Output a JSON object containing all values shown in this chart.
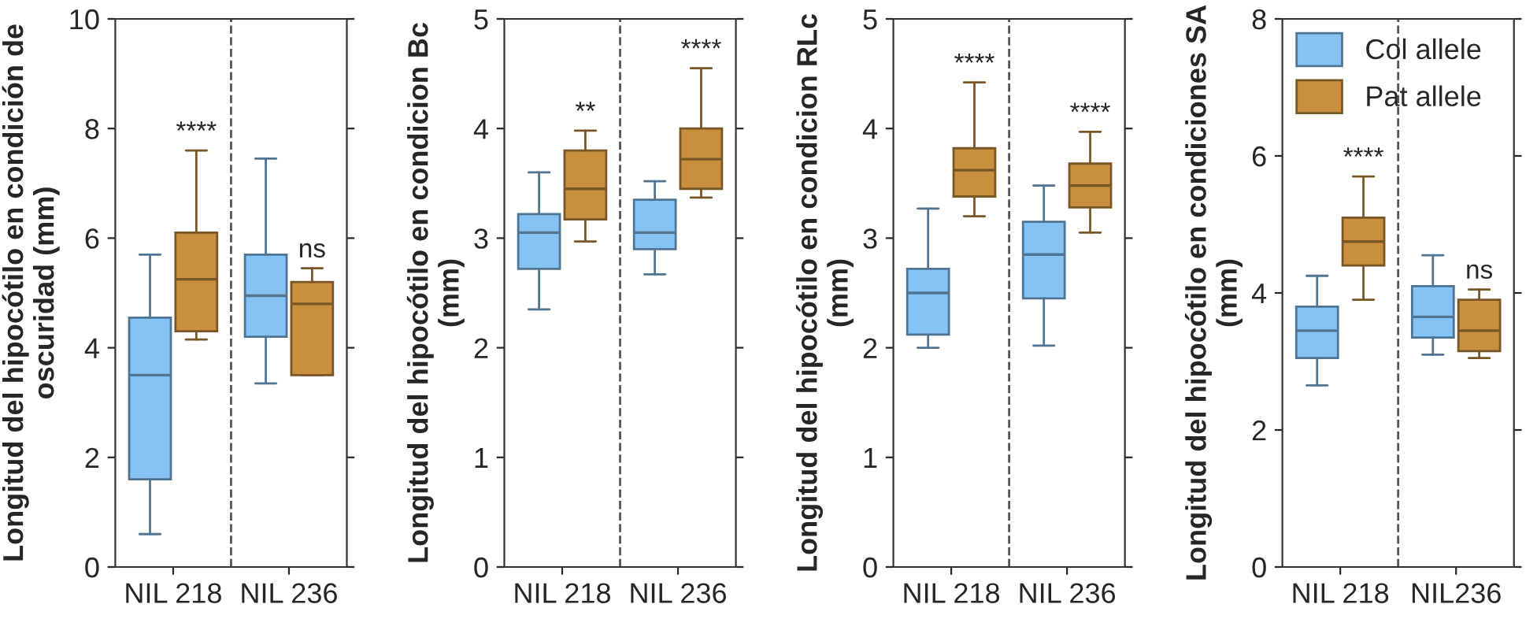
{
  "chart_data": [
    {
      "type": "box",
      "ylabel": "Longitud del hipocótilo en condición de oscuridad (mm)",
      "categories": [
        "NIL 218",
        "NIL 236"
      ],
      "ylim": [
        0,
        10
      ],
      "yticks": [
        0,
        2,
        4,
        6,
        8,
        10
      ],
      "grid": false,
      "series": [
        {
          "color": "#86c3f5",
          "boxes": [
            {
              "low": 0.6,
              "q1": 1.6,
              "median": 3.5,
              "q3": 4.55,
              "high": 5.7
            },
            {
              "low": 3.35,
              "q1": 4.2,
              "median": 4.95,
              "q3": 5.7,
              "high": 7.45
            }
          ]
        },
        {
          "color": "#c98f3e",
          "boxes": [
            {
              "low": 4.15,
              "q1": 4.3,
              "median": 5.25,
              "q3": 6.1,
              "high": 7.6
            },
            {
              "low": 3.5,
              "q1": 3.5,
              "median": 4.8,
              "q3": 5.2,
              "high": 5.45
            }
          ]
        }
      ],
      "annotations": [
        "****",
        "ns"
      ]
    },
    {
      "type": "box",
      "ylabel": "Longitud del hipocótilo en condicion Bc (mm)",
      "categories": [
        "NIL 218",
        "NIL 236"
      ],
      "ylim": [
        0,
        5
      ],
      "yticks": [
        0,
        1,
        2,
        3,
        4,
        5
      ],
      "grid": false,
      "series": [
        {
          "color": "#86c3f5",
          "boxes": [
            {
              "low": 2.35,
              "q1": 2.72,
              "median": 3.05,
              "q3": 3.22,
              "high": 3.6
            },
            {
              "low": 2.67,
              "q1": 2.9,
              "median": 3.05,
              "q3": 3.35,
              "high": 3.52
            }
          ]
        },
        {
          "color": "#c98f3e",
          "boxes": [
            {
              "low": 2.97,
              "q1": 3.17,
              "median": 3.45,
              "q3": 3.8,
              "high": 3.98
            },
            {
              "low": 3.37,
              "q1": 3.45,
              "median": 3.72,
              "q3": 4.0,
              "high": 4.55
            }
          ]
        }
      ],
      "annotations": [
        "**",
        "****"
      ]
    },
    {
      "type": "box",
      "ylabel": "Longitud del hipocótilo en condicion RLc (mm)",
      "categories": [
        "NIL 218",
        "NIL 236"
      ],
      "ylim": [
        0,
        5
      ],
      "yticks": [
        0,
        1,
        2,
        3,
        4,
        5
      ],
      "grid": false,
      "series": [
        {
          "color": "#86c3f5",
          "boxes": [
            {
              "low": 2.0,
              "q1": 2.12,
              "median": 2.5,
              "q3": 2.72,
              "high": 3.27
            },
            {
              "low": 2.02,
              "q1": 2.45,
              "median": 2.85,
              "q3": 3.15,
              "high": 3.48
            }
          ]
        },
        {
          "color": "#c98f3e",
          "boxes": [
            {
              "low": 3.2,
              "q1": 3.38,
              "median": 3.62,
              "q3": 3.82,
              "high": 4.42
            },
            {
              "low": 3.05,
              "q1": 3.28,
              "median": 3.48,
              "q3": 3.68,
              "high": 3.97
            }
          ]
        }
      ],
      "annotations": [
        "****",
        "****"
      ]
    },
    {
      "type": "box",
      "ylabel": "Longitud del hipocótilo en condiciones SA (mm)",
      "categories": [
        "NIL 218",
        "NIL236"
      ],
      "ylim": [
        0,
        8
      ],
      "yticks": [
        0,
        2,
        4,
        6,
        8
      ],
      "grid": false,
      "legend": "top left",
      "series": [
        {
          "name": "Col allele",
          "color": "#86c3f5",
          "boxes": [
            {
              "low": 2.65,
              "q1": 3.05,
              "median": 3.45,
              "q3": 3.8,
              "high": 4.25
            },
            {
              "low": 3.1,
              "q1": 3.35,
              "median": 3.65,
              "q3": 4.1,
              "high": 4.55
            }
          ]
        },
        {
          "name": "Pat allele",
          "color": "#c98f3e",
          "boxes": [
            {
              "low": 3.9,
              "q1": 4.4,
              "median": 4.75,
              "q3": 5.1,
              "high": 5.7
            },
            {
              "low": 3.05,
              "q1": 3.15,
              "median": 3.45,
              "q3": 3.9,
              "high": 4.05
            }
          ]
        }
      ],
      "annotations": [
        "****",
        "ns"
      ]
    }
  ]
}
